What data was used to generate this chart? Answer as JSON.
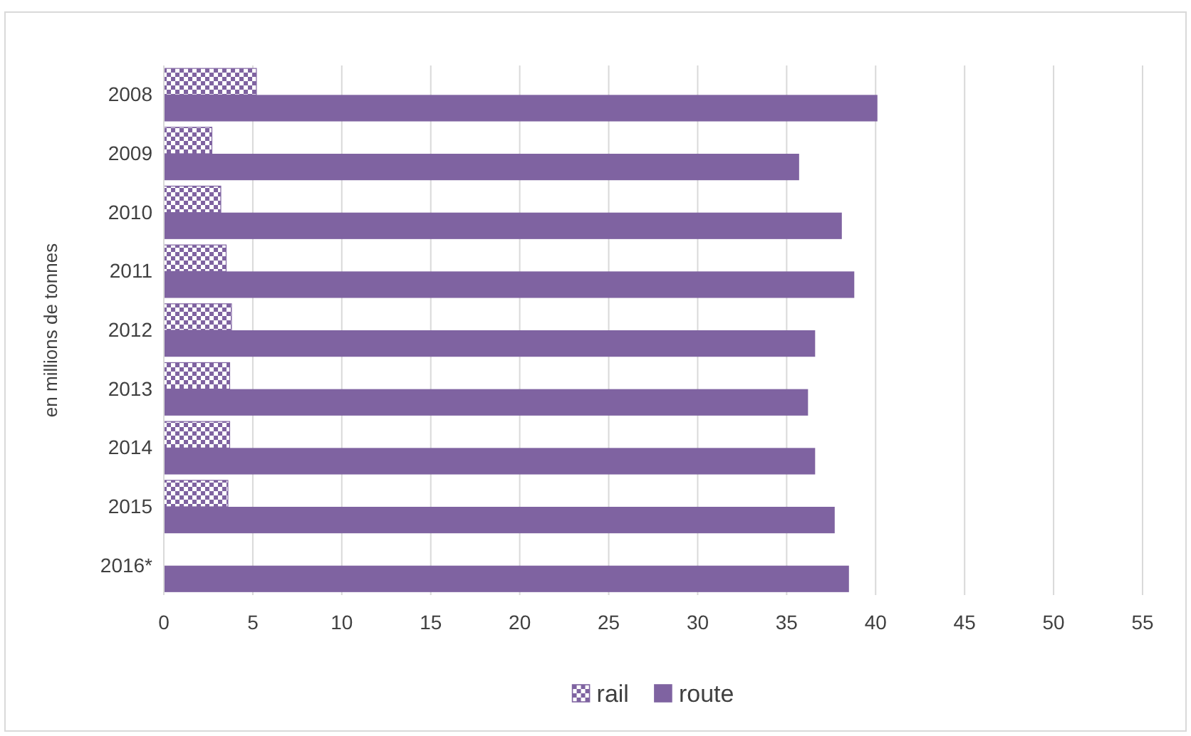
{
  "chart_data": {
    "type": "bar",
    "orientation": "horizontal",
    "ylabel": "en millions de tonnes",
    "categories": [
      "2008",
      "2009",
      "2010",
      "2011",
      "2012",
      "2013",
      "2014",
      "2015",
      "2016*"
    ],
    "series": [
      {
        "name": "rail",
        "color": "#7f63a1",
        "values": [
          5.2,
          2.7,
          3.2,
          3.5,
          3.8,
          3.7,
          3.7,
          3.6,
          null
        ]
      },
      {
        "name": "route",
        "color": "#7f63a1",
        "values": [
          40.1,
          35.7,
          38.1,
          38.8,
          36.6,
          36.2,
          36.6,
          37.7,
          38.5
        ]
      }
    ],
    "xlim": [
      0,
      55
    ],
    "xticks": [
      0,
      5,
      10,
      15,
      20,
      25,
      30,
      35,
      40,
      45,
      50,
      55
    ],
    "grid": "x",
    "legend": "bottom"
  }
}
